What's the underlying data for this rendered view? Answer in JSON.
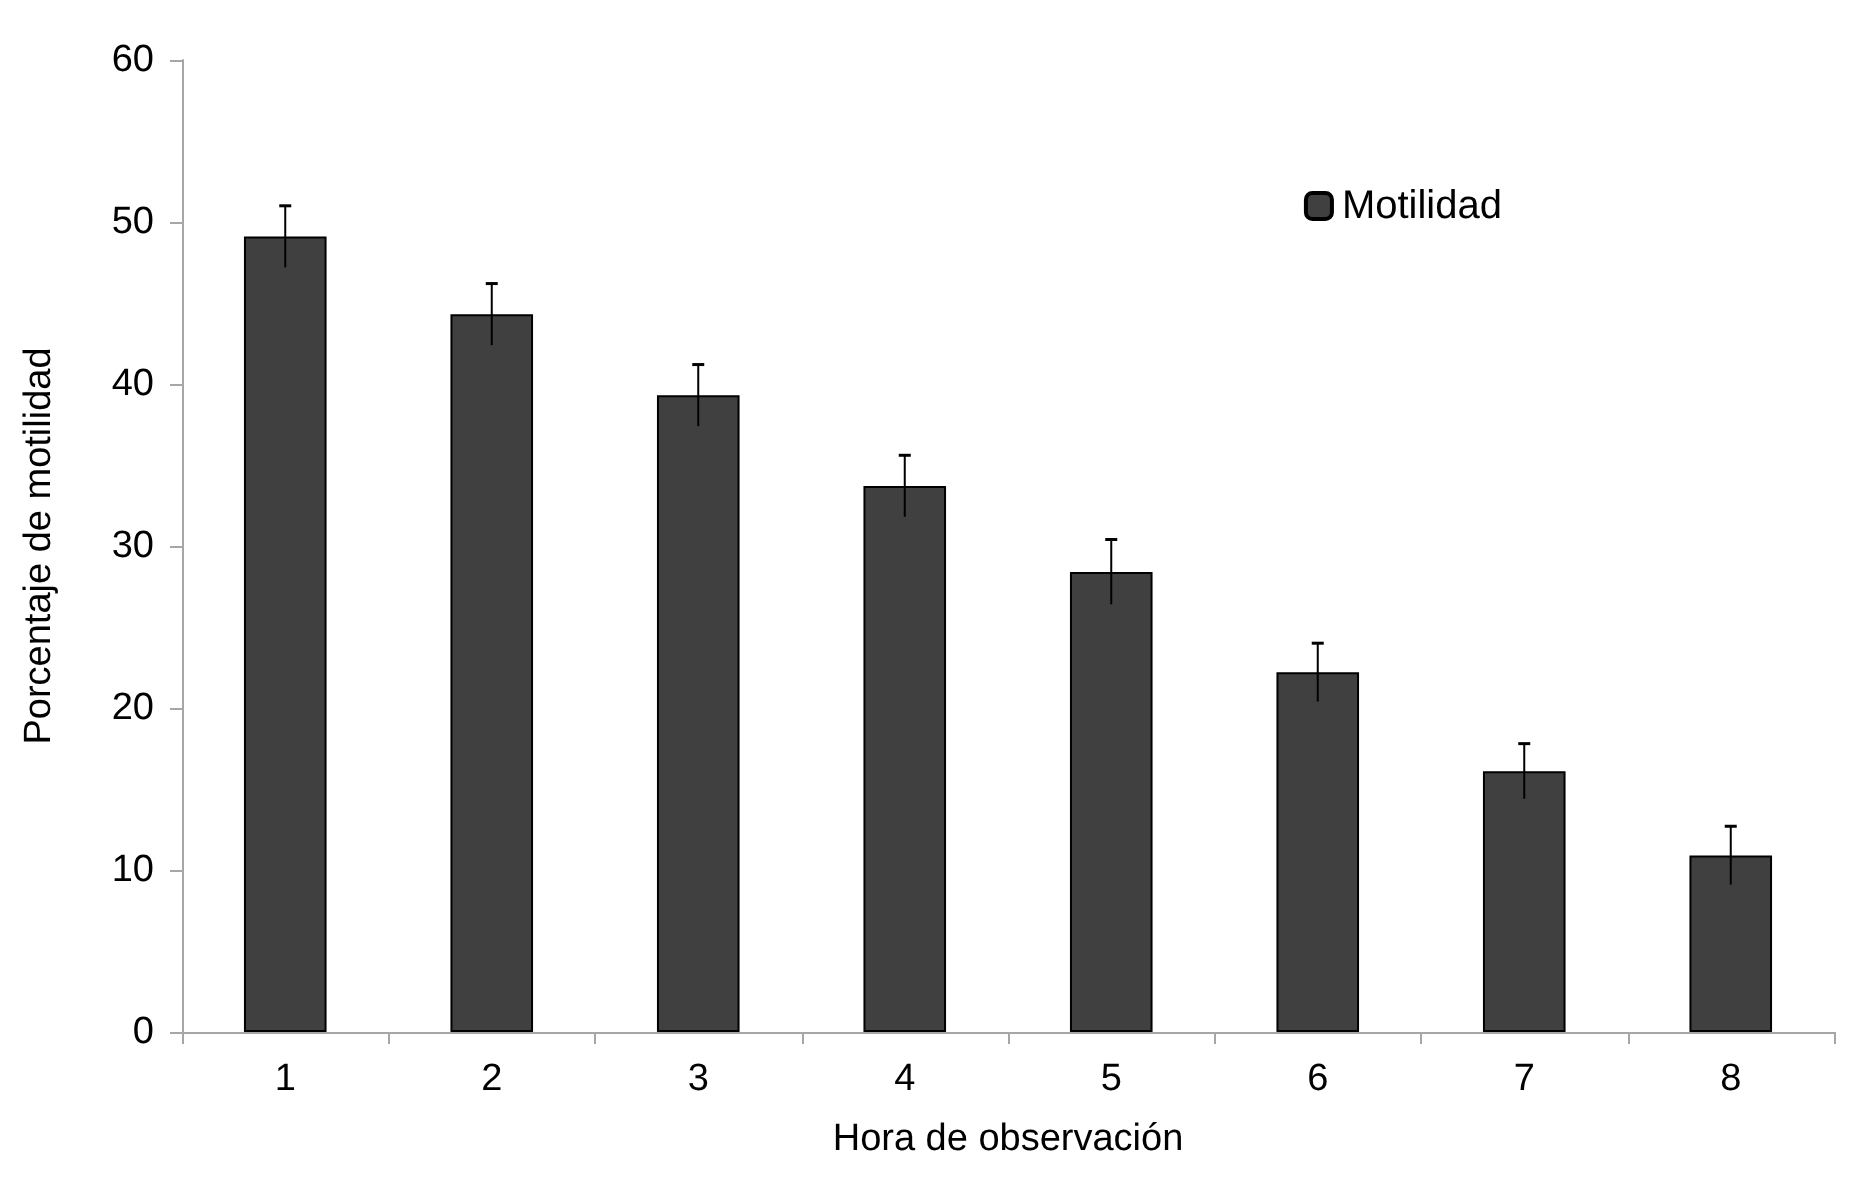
{
  "chart_data": {
    "type": "bar",
    "xlabel": "Hora de observación",
    "ylabel": "Porcentaje de motilidad",
    "categories": [
      "1",
      "2",
      "3",
      "4",
      "5",
      "6",
      "7",
      "8"
    ],
    "series": [
      {
        "name": "Motilidad",
        "color": "#404040",
        "values": [
          49.1,
          44.3,
          39.3,
          33.7,
          28.4,
          22.2,
          16.1,
          10.9
        ],
        "errors": [
          1.9,
          1.9,
          1.9,
          1.9,
          2.0,
          1.8,
          1.7,
          1.8
        ]
      }
    ],
    "ylim": [
      0,
      60
    ],
    "yticks": [
      0,
      10,
      20,
      30,
      40,
      50,
      60
    ],
    "grid": false,
    "legend": "top right"
  }
}
